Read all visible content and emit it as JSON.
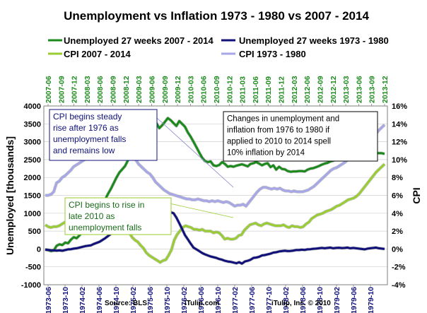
{
  "chart_data": {
    "type": "line",
    "title": "Unemployment vs Inflation 1973 - 1980 vs 2007 - 2014",
    "ylabel_left": "Unemployed [thousands]",
    "ylabel_right": "CPI",
    "ylim_left": [
      -1000,
      4000
    ],
    "ylim_right": [
      -4,
      16
    ],
    "yticks_left": [
      "4000",
      "3500",
      "3000",
      "2500",
      "2000",
      "1500",
      "1000",
      "500",
      "0",
      "-500",
      "-1000"
    ],
    "yticks_right": [
      "16%",
      "14%",
      "12%",
      "10%",
      "8%",
      "6%",
      "4%",
      "2%",
      "0%",
      "-2%",
      "-4%"
    ],
    "x_top_ticks": [
      "2007-06",
      "2007-09",
      "2007-12",
      "2008-03",
      "2008-06",
      "2008-09",
      "2008-12",
      "2009-03",
      "2009-06",
      "2009-09",
      "2009-12",
      "2010-03",
      "2010-06",
      "2010-09",
      "2010-12",
      "2011-03",
      "2011-06",
      "2011-09",
      "2011-12",
      "2012-03",
      "2012-06",
      "2012-09",
      "2012-12",
      "2013-03",
      "2013-06",
      "2013-09",
      "2013-12"
    ],
    "x_bottom_ticks": [
      "1973-06",
      "1973-10",
      "1974-02",
      "1974-06",
      "1974-10",
      "1975-02",
      "1975-06",
      "1975-10",
      "1976-02",
      "1976-06",
      "1976-10",
      "1977-02",
      "1977-06",
      "1977-10",
      "1978-02",
      "1978-06",
      "1978-10",
      "1979-02",
      "1979-06",
      "1979-10"
    ],
    "legend_position": "top",
    "series": [
      {
        "name": "Unemployed 27 weeks 2007 - 2014",
        "axis": "left",
        "color": "#1a8a1a",
        "values": [
          -10,
          -30,
          -60,
          -40,
          90,
          130,
          110,
          180,
          160,
          260,
          330,
          300,
          380,
          470,
          560,
          660,
          760,
          860,
          1000,
          1160,
          1290,
          1380,
          1540,
          1680,
          1840,
          2000,
          2140,
          2230,
          2320,
          2480,
          2630,
          2800,
          2980,
          3140,
          3260,
          3200,
          3280,
          3400,
          3460,
          3520,
          3380,
          3460,
          3560,
          3660,
          3600,
          3520,
          3440,
          3580,
          3500,
          3420,
          3260,
          3140,
          3000,
          2850,
          2700,
          2560,
          2460,
          2430,
          2450,
          2340,
          2320,
          2350,
          2430,
          2380,
          2300,
          2320,
          2300,
          2330,
          2350,
          2370,
          2340,
          2310,
          2380,
          2400,
          2430,
          2390,
          2340,
          2380,
          2400,
          2290,
          2340,
          2220,
          2300,
          2240,
          2230,
          2180,
          2160,
          2170,
          2170,
          2180,
          2180,
          2170,
          2220,
          2250,
          2260,
          2290,
          2320,
          2360,
          2390,
          2410,
          2450,
          2470,
          2500,
          2520,
          2540,
          2550,
          2570,
          2560,
          2580,
          2600,
          2620,
          2630,
          2650,
          2660,
          2670,
          2680,
          2680,
          2680,
          2680,
          2660
        ]
      },
      {
        "name": "Unemployed 27 weeks 1973 - 1980",
        "axis": "left",
        "color": "#10107a",
        "values": [
          -20,
          -25,
          -35,
          -40,
          -45,
          -40,
          -50,
          -30,
          -10,
          -5,
          10,
          20,
          40,
          60,
          80,
          90,
          100,
          140,
          170,
          200,
          250,
          300,
          360,
          420,
          480,
          560,
          600,
          650,
          700,
          780,
          830,
          900,
          980,
          1040,
          1100,
          1150,
          1180,
          1200,
          1150,
          1200,
          1090,
          1180,
          1200,
          1150,
          1030,
          1000,
          880,
          720,
          560,
          390,
          270,
          150,
          40,
          -10,
          -60,
          -110,
          -150,
          -180,
          -210,
          -230,
          -250,
          -280,
          -300,
          -330,
          -350,
          -360,
          -380,
          -400,
          -370,
          -410,
          -350,
          -330,
          -300,
          -250,
          -240,
          -220,
          -180,
          -170,
          -150,
          -130,
          -100,
          -90,
          -70,
          -60,
          -50,
          -60,
          -55,
          -45,
          -30,
          -30,
          -20,
          -25,
          -10,
          -5,
          5,
          10,
          20,
          30,
          20,
          30,
          40,
          20,
          30,
          35,
          25,
          30,
          40,
          20,
          30,
          20,
          10,
          0,
          -10,
          10,
          20,
          30,
          40,
          20,
          10,
          0
        ]
      },
      {
        "name": "CPI 2007 - 2014",
        "axis": "right",
        "color": "#9acd32",
        "values": [
          2.7,
          2.5,
          2.4,
          2.5,
          2.5,
          2.6,
          2.8,
          3.0,
          2.5,
          2.3,
          2.6,
          2.4,
          3.0,
          3.2,
          3.8,
          3.6,
          3.4,
          3.5,
          3.4,
          3.7,
          3.6,
          3.5,
          3.9,
          3.8,
          3.4,
          3.7,
          3.5,
          3.0,
          2.9,
          2.5,
          1.8,
          1.3,
          1.0,
          0.8,
          0.4,
          0.1,
          -0.4,
          -0.7,
          -0.9,
          -1.1,
          -1.3,
          -1.5,
          -1.3,
          -1.2,
          -0.7,
          -0.1,
          1.0,
          1.6,
          2.0,
          2.4,
          2.6,
          2.5,
          2.4,
          2.2,
          2.2,
          2.1,
          2.2,
          2.0,
          2.0,
          2.0,
          1.8,
          1.9,
          1.8,
          1.5,
          1.1,
          1.2,
          1.1,
          1.1,
          1.2,
          1.5,
          1.6,
          2.1,
          2.4,
          2.7,
          2.8,
          2.9,
          2.7,
          2.6,
          2.8,
          2.9,
          2.8,
          2.7,
          2.6,
          2.6,
          2.6,
          2.7,
          2.5,
          2.4,
          2.6,
          2.5,
          2.5,
          2.4,
          2.5,
          2.8,
          3.0,
          3.4,
          3.6,
          3.8,
          3.9,
          4.0,
          4.2,
          4.3,
          4.4,
          4.6,
          4.8,
          4.9,
          5.1,
          5.3,
          5.5,
          5.6,
          5.7,
          5.9,
          6.2,
          6.6,
          7.0,
          7.4,
          7.8,
          8.2,
          8.6,
          8.9,
          9.2,
          9.5
        ]
      },
      {
        "name": "CPI 1973 - 1980",
        "axis": "right",
        "color": "#a6a6e8",
        "values": [
          6.0,
          6.0,
          6.1,
          6.4,
          7.4,
          7.6,
          8.0,
          8.2,
          8.5,
          8.8,
          9.2,
          9.4,
          9.6,
          9.8,
          10.0,
          10.2,
          10.4,
          10.6,
          10.8,
          11.0,
          11.2,
          11.0,
          11.1,
          11.4,
          11.6,
          11.8,
          11.9,
          12.0,
          11.5,
          11.0,
          10.7,
          10.4,
          10.0,
          9.5,
          9.2,
          8.9,
          8.6,
          8.4,
          8.0,
          7.5,
          7.2,
          6.9,
          6.6,
          6.4,
          6.2,
          6.1,
          6.0,
          5.9,
          5.8,
          5.7,
          5.6,
          5.6,
          5.5,
          5.5,
          5.6,
          5.5,
          5.4,
          5.4,
          5.3,
          5.4,
          5.3,
          5.4,
          5.3,
          5.2,
          5.3,
          5.2,
          5.0,
          4.8,
          4.9,
          4.9,
          5.0,
          4.8,
          5.2,
          5.6,
          6.0,
          6.4,
          6.7,
          6.9,
          6.9,
          6.8,
          6.7,
          6.8,
          6.7,
          6.8,
          6.6,
          6.5,
          6.5,
          6.4,
          6.5,
          6.4,
          6.4,
          6.4,
          6.5,
          6.6,
          6.8,
          7.0,
          7.3,
          7.6,
          7.9,
          8.2,
          8.5,
          8.8,
          9.0,
          9.1,
          9.3,
          9.5,
          9.7,
          10.0,
          10.2,
          10.4,
          10.6,
          10.8,
          11.0,
          11.3,
          11.7,
          12.1,
          12.5,
          12.9,
          13.3,
          13.6,
          13.9
        ]
      }
    ],
    "annotations": [
      {
        "id": "a1",
        "text": [
          "CPI begins steady",
          "rise after 1976 as",
          "unemployment falls",
          "and remains low"
        ]
      },
      {
        "id": "a2",
        "text": [
          "Changes in unemployment and",
          "inflation from 1976 to 1980 if",
          "applied to 2010 to 2014 spell",
          "10% inflation by 2014"
        ]
      },
      {
        "id": "a3",
        "text": [
          "CPI begins to rise in",
          "late 2010 as",
          "unemployment falls"
        ]
      }
    ],
    "footer": [
      "Source: BLS",
      "iTulip.com",
      "iTulip, Inc. © 2010"
    ]
  }
}
